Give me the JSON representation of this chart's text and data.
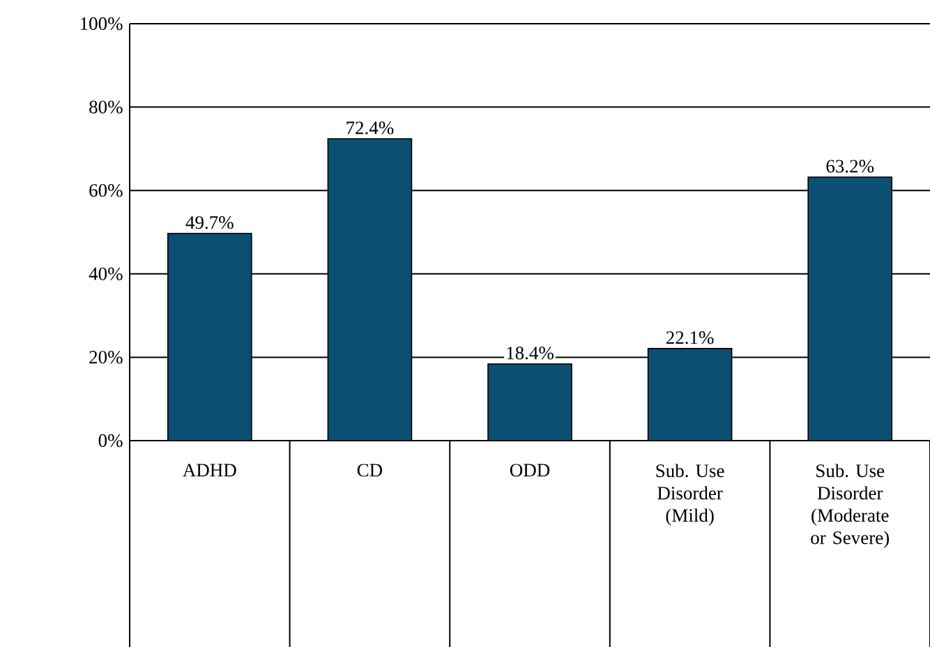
{
  "chart_data": {
    "type": "bar",
    "categories": [
      "ADHD",
      "CD",
      "ODD",
      "Sub. Use Disorder (Mild)",
      "Sub. Use Disorder (Moderate or Severe)"
    ],
    "values": [
      49.7,
      72.4,
      18.4,
      22.1,
      63.2
    ],
    "value_labels": [
      "49.7%",
      "72.4%",
      "18.4%",
      "22.1%",
      "63.2%"
    ],
    "color": "#0b4f72",
    "ylim": [
      0,
      100
    ],
    "yticks": [
      {
        "value": 0,
        "label": "0%"
      },
      {
        "value": 20,
        "label": "20%"
      },
      {
        "value": 40,
        "label": "40%"
      },
      {
        "value": 60,
        "label": "60%"
      },
      {
        "value": 80,
        "label": "80%"
      },
      {
        "value": 100,
        "label": "100%"
      }
    ],
    "grid": "y"
  }
}
